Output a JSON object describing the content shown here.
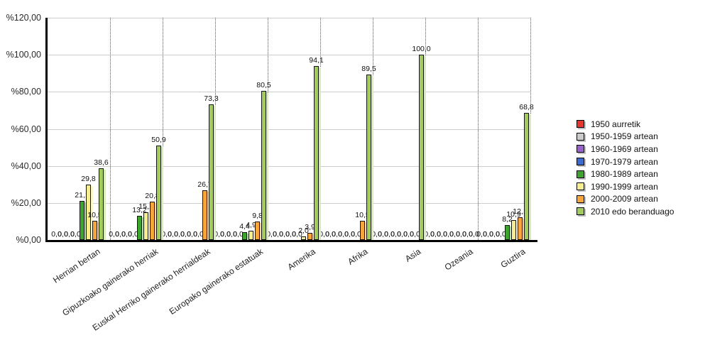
{
  "chart_data": {
    "type": "bar",
    "title": "",
    "categories": [
      "Herrian bertan",
      "Gipuzkoako gainerako herriak",
      "Euskal Herriko gainerako herrialdeak",
      "Europako gainerako estatuak",
      "Amerika",
      "Afrika",
      "Asia",
      "Ozeania",
      "Guztira"
    ],
    "series": [
      {
        "name": "1950 aurretik",
        "color": "#E6372E",
        "shadow": "#F6B7AE",
        "values": [
          0,
          0,
          0,
          0,
          0,
          0,
          0,
          0,
          0
        ]
      },
      {
        "name": "1950-1959 artean",
        "color": "#CBCBCB",
        "shadow": "#EAEAEA",
        "values": [
          0,
          0,
          0,
          0,
          0,
          0,
          0,
          0,
          0
        ]
      },
      {
        "name": "1960-1969 artean",
        "color": "#9B63C9",
        "shadow": "#D9C2EB",
        "values": [
          0,
          0,
          0,
          0,
          0,
          0,
          0,
          0,
          0
        ]
      },
      {
        "name": "1970-1979 artean",
        "color": "#3D69D2",
        "shadow": "#BCC9F0",
        "values": [
          0,
          0,
          0,
          0,
          0,
          0,
          0,
          0,
          0
        ]
      },
      {
        "name": "1980-1989 artean",
        "color": "#3FA32F",
        "shadow": "#BADFAE",
        "values": [
          21.1,
          13.2,
          0,
          4.4,
          0,
          0,
          0,
          0,
          8.2
        ]
      },
      {
        "name": "1990-1999 artean",
        "color": "#F7EE8D",
        "shadow": "#FCF8D2",
        "values": [
          29.8,
          15.1,
          0,
          4.9,
          2.0,
          0,
          0,
          0,
          10.9
        ]
      },
      {
        "name": "2000-2009 artean",
        "color": "#F8A63C",
        "shadow": "#FCDCAC",
        "values": [
          10.5,
          20.8,
          26.7,
          9.8,
          3.9,
          10.5,
          0,
          0,
          12.1
        ]
      },
      {
        "name": "2010 edo beranduago",
        "color": "#A2CC5C",
        "shadow": "#DAEBBC",
        "values": [
          38.6,
          50.9,
          73.3,
          80.5,
          94.1,
          89.5,
          100.0,
          0,
          68.8
        ]
      }
    ],
    "yticks": [
      {
        "value": 120,
        "label": "%120,00"
      },
      {
        "value": 100,
        "label": "%100,00"
      },
      {
        "value": 80,
        "label": "%80,00"
      },
      {
        "value": 60,
        "label": "%60,00"
      },
      {
        "value": 40,
        "label": "%40,00"
      },
      {
        "value": 20,
        "label": "%20,00"
      },
      {
        "value": 0,
        "label": "%0,00"
      }
    ],
    "ylim": [
      0,
      120
    ],
    "grid": {
      "horizontal": true,
      "vertical_dotted": true
    },
    "legend_position": "right",
    "value_labels": "shown above every bar, comma decimal, e.g. 0,0 / 21,1 / 100,0"
  }
}
